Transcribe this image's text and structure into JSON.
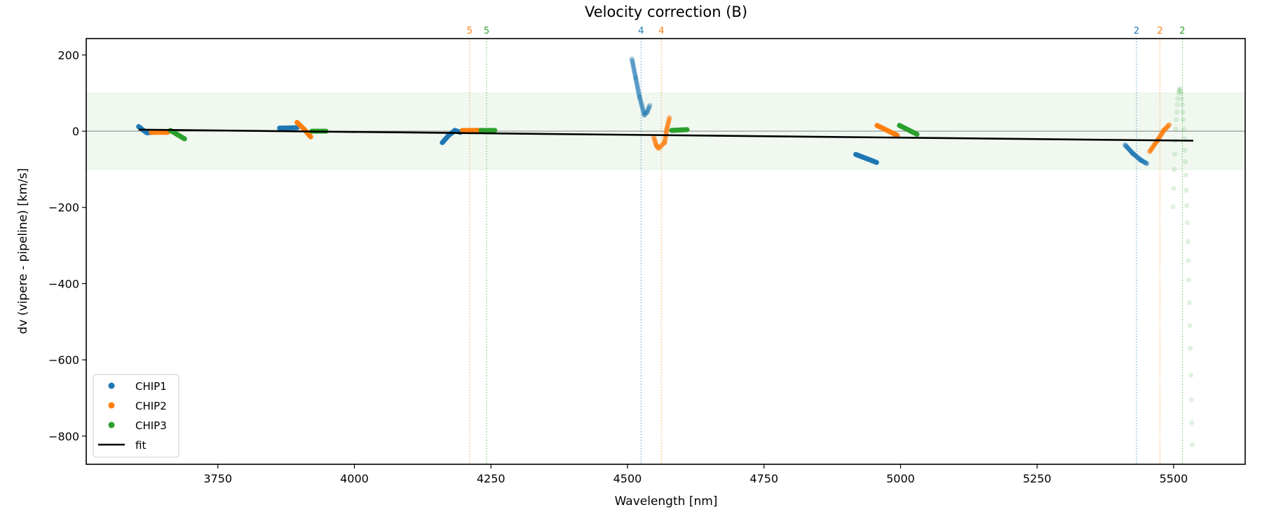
{
  "chart_data": {
    "type": "scatter",
    "title": "Velocity correction (B)",
    "xlabel": "Wavelength [nm]",
    "ylabel": "dv (vipere - pipeline) [km/s]",
    "xlim": [
      3509,
      5631
    ],
    "ylim": [
      -874,
      243
    ],
    "xticks": [
      3750,
      4000,
      4250,
      4500,
      4750,
      5000,
      5250,
      5500
    ],
    "yticks": [
      200,
      0,
      -200,
      -400,
      -600,
      -800
    ],
    "ytick_labels": [
      "200",
      "0",
      "−200",
      "−400",
      "−600",
      "−800"
    ],
    "band": {
      "low": -100,
      "high": 100,
      "color": "#2ca02c"
    },
    "zero_line": 0,
    "legend": {
      "placement": "lower-left",
      "entries": [
        {
          "label": "CHIP1",
          "color": "#1f77b4",
          "kind": "marker"
        },
        {
          "label": "CHIP2",
          "color": "#ff7f0e",
          "kind": "marker"
        },
        {
          "label": "CHIP3",
          "color": "#2ca02c",
          "kind": "marker"
        },
        {
          "label": "fit",
          "color": "#000000",
          "kind": "line"
        }
      ]
    },
    "vlines": [
      {
        "x": 4211,
        "label": "5",
        "color": "#ff7f0e"
      },
      {
        "x": 4242,
        "label": "5",
        "color": "#2ca02c"
      },
      {
        "x": 4525,
        "label": "4",
        "color": "#1f77b4"
      },
      {
        "x": 4562,
        "label": "4",
        "color": "#ff7f0e"
      },
      {
        "x": 5432,
        "label": "2",
        "color": "#1f77b4"
      },
      {
        "x": 5475,
        "label": "2",
        "color": "#ff7f0e"
      },
      {
        "x": 5516,
        "label": "2",
        "color": "#2ca02c"
      }
    ],
    "series": [
      {
        "name": "CHIP1",
        "color": "#1f77b4",
        "segments": [
          {
            "opacity": 1,
            "points": [
              [
                3605,
                12
              ],
              [
                3612,
                4
              ],
              [
                3620,
                -4
              ],
              [
                3631,
                -3
              ]
            ]
          },
          {
            "opacity": 1,
            "points": [
              [
                3863,
                8
              ],
              [
                3895,
                9
              ]
            ]
          },
          {
            "opacity": 1,
            "points": [
              [
                4161,
                -30
              ],
              [
                4172,
                -12
              ],
              [
                4184,
                2
              ],
              [
                4194,
                -3
              ]
            ]
          },
          {
            "opacity": 0.25,
            "points": [
              [
                4508,
                190
              ],
              [
                4515,
                140
              ],
              [
                4522,
                90
              ],
              [
                4531,
                42
              ],
              [
                4536,
                50
              ],
              [
                4541,
                68
              ]
            ]
          },
          {
            "opacity": 1,
            "points": [
              [
                4918,
                -61
              ],
              [
                4956,
                -82
              ]
            ]
          },
          {
            "opacity": 0.45,
            "points": [
              [
                5411,
                -36
              ],
              [
                5425,
                -58
              ],
              [
                5440,
                -76
              ],
              [
                5451,
                -85
              ]
            ]
          }
        ]
      },
      {
        "name": "CHIP2",
        "color": "#ff7f0e",
        "segments": [
          {
            "opacity": 1,
            "points": [
              [
                3628,
                -3
              ],
              [
                3658,
                -3
              ]
            ]
          },
          {
            "opacity": 1,
            "points": [
              [
                3895,
                23
              ],
              [
                3908,
                5
              ],
              [
                3920,
                -15
              ]
            ]
          },
          {
            "opacity": 1,
            "points": [
              [
                4198,
                2
              ],
              [
                4232,
                2
              ]
            ]
          },
          {
            "opacity": 0.35,
            "points": [
              [
                4548,
                -15
              ],
              [
                4553,
                -38
              ],
              [
                4557,
                -45
              ],
              [
                4568,
                -30
              ],
              [
                4572,
                5
              ],
              [
                4577,
                36
              ]
            ]
          },
          {
            "opacity": 1,
            "points": [
              [
                4957,
                15
              ],
              [
                4994,
                -11
              ]
            ]
          },
          {
            "opacity": 0.45,
            "points": [
              [
                5456,
                -54
              ],
              [
                5470,
                -25
              ],
              [
                5482,
                2
              ],
              [
                5492,
                17
              ]
            ]
          }
        ]
      },
      {
        "name": "CHIP3",
        "color": "#2ca02c",
        "segments": [
          {
            "opacity": 1,
            "points": [
              [
                3663,
                2
              ],
              [
                3689,
                -20
              ]
            ]
          },
          {
            "opacity": 1,
            "points": [
              [
                3922,
                0
              ],
              [
                3948,
                0
              ]
            ]
          },
          {
            "opacity": 1,
            "points": [
              [
                4232,
                2
              ],
              [
                4257,
                2
              ]
            ]
          },
          {
            "opacity": 1,
            "points": [
              [
                4581,
                2
              ],
              [
                4609,
                4
              ]
            ]
          },
          {
            "opacity": 1,
            "points": [
              [
                4998,
                15
              ],
              [
                5030,
                -8
              ]
            ]
          }
        ],
        "scatter": {
          "opacity": 0.15,
          "points": [
            [
              5511,
              112
            ],
            [
              5512,
              106
            ],
            [
              5513.6,
              100
            ],
            [
              5514.9,
              85
            ],
            [
              5515.9,
              70
            ],
            [
              5516.9,
              50
            ],
            [
              5517.8,
              30
            ],
            [
              5518.8,
              5
            ],
            [
              5519.6,
              -20
            ],
            [
              5520.6,
              -50
            ],
            [
              5521.4,
              -80
            ],
            [
              5522.3,
              -115
            ],
            [
              5523.3,
              -155
            ],
            [
              5524.2,
              -195
            ],
            [
              5525.1,
              -240
            ],
            [
              5526.1,
              -290
            ],
            [
              5527.0,
              -340
            ],
            [
              5527.9,
              -390
            ],
            [
              5528.8,
              -450
            ],
            [
              5529.8,
              -510
            ],
            [
              5530.6,
              -570
            ],
            [
              5531.6,
              -640
            ],
            [
              5532.5,
              -705
            ],
            [
              5533.3,
              -765
            ],
            [
              5534,
              -823
            ],
            [
              5510,
              108
            ],
            [
              5508.6,
              100
            ],
            [
              5507.5,
              85
            ],
            [
              5506.6,
              70
            ],
            [
              5505.6,
              50
            ],
            [
              5504.8,
              30
            ],
            [
              5503.9,
              5
            ],
            [
              5503,
              -25
            ],
            [
              5502.1,
              -60
            ],
            [
              5501.1,
              -100
            ],
            [
              5500,
              -150
            ],
            [
              5499,
              -198
            ]
          ]
        }
      }
    ],
    "fit": {
      "name": "fit",
      "color": "#000000",
      "points": [
        [
          3605,
          4
        ],
        [
          5536,
          -25
        ]
      ]
    }
  }
}
